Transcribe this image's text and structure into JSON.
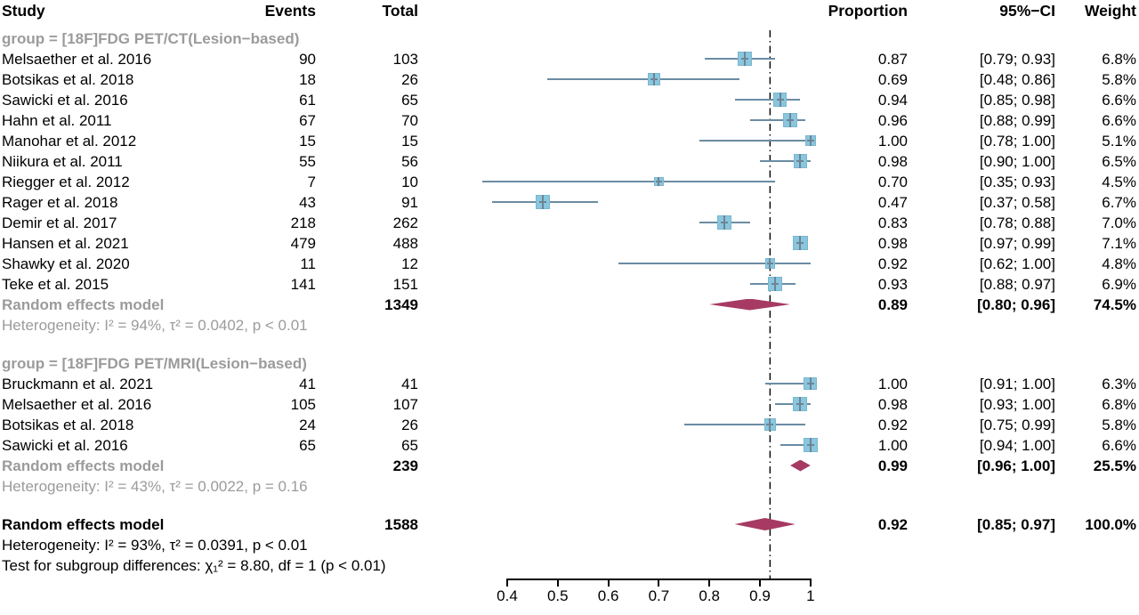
{
  "header": {
    "study": "Study",
    "events": "Events",
    "total": "Total",
    "proportion": "Proportion",
    "ci": "95%−CI",
    "weight": "Weight"
  },
  "colors": {
    "square": "#8AC6DE",
    "square_border": "#79B7D0",
    "ci_line": "#6B8CA3",
    "diamond": "#A63A63",
    "group_text": "#9B9B9B",
    "reference_line": "#000000"
  },
  "chart_data": {
    "type": "forest",
    "xlim": [
      0.4,
      1.0
    ],
    "x_ticks": [
      0.4,
      0.5,
      0.6,
      0.7,
      0.8,
      0.9,
      1.0
    ],
    "x_tick_labels": [
      "0.4",
      "0.5",
      "0.6",
      "0.7",
      "0.8",
      "0.9",
      "1"
    ],
    "reference_line": 0.92,
    "groups": [
      {
        "label": "group = [18F]FDG PET/CT(Lesion−based)",
        "studies": [
          {
            "study": "Melsaether et al. 2016",
            "events": "90",
            "total": "103",
            "proportion": "0.87",
            "prop": 0.87,
            "ci": "[0.79; 0.93]",
            "ci_low": 0.79,
            "ci_high": 0.93,
            "weight": "6.8%",
            "weight_pct": 6.8
          },
          {
            "study": "Botsikas et al. 2018",
            "events": "18",
            "total": "26",
            "proportion": "0.69",
            "prop": 0.69,
            "ci": "[0.48; 0.86]",
            "ci_low": 0.48,
            "ci_high": 0.86,
            "weight": "5.8%",
            "weight_pct": 5.8
          },
          {
            "study": "Sawicki et al. 2016",
            "events": "61",
            "total": "65",
            "proportion": "0.94",
            "prop": 0.94,
            "ci": "[0.85; 0.98]",
            "ci_low": 0.85,
            "ci_high": 0.98,
            "weight": "6.6%",
            "weight_pct": 6.6
          },
          {
            "study": "Hahn et al. 2011",
            "events": "67",
            "total": "70",
            "proportion": "0.96",
            "prop": 0.96,
            "ci": "[0.88; 0.99]",
            "ci_low": 0.88,
            "ci_high": 0.99,
            "weight": "6.6%",
            "weight_pct": 6.6
          },
          {
            "study": "Manohar et al. 2012",
            "events": "15",
            "total": "15",
            "proportion": "1.00",
            "prop": 1.0,
            "ci": "[0.78; 1.00]",
            "ci_low": 0.78,
            "ci_high": 1.0,
            "weight": "5.1%",
            "weight_pct": 5.1
          },
          {
            "study": "Niikura et al. 2011",
            "events": "55",
            "total": "56",
            "proportion": "0.98",
            "prop": 0.98,
            "ci": "[0.90; 1.00]",
            "ci_low": 0.9,
            "ci_high": 1.0,
            "weight": "6.5%",
            "weight_pct": 6.5
          },
          {
            "study": "Riegger et al. 2012",
            "events": "7",
            "total": "10",
            "proportion": "0.70",
            "prop": 0.7,
            "ci": "[0.35; 0.93]",
            "ci_low": 0.35,
            "ci_high": 0.93,
            "weight": "4.5%",
            "weight_pct": 4.5
          },
          {
            "study": "Rager et al. 2018",
            "events": "43",
            "total": "91",
            "proportion": "0.47",
            "prop": 0.47,
            "ci": "[0.37; 0.58]",
            "ci_low": 0.37,
            "ci_high": 0.58,
            "weight": "6.7%",
            "weight_pct": 6.7
          },
          {
            "study": "Demir et al. 2017",
            "events": "218",
            "total": "262",
            "proportion": "0.83",
            "prop": 0.83,
            "ci": "[0.78; 0.88]",
            "ci_low": 0.78,
            "ci_high": 0.88,
            "weight": "7.0%",
            "weight_pct": 7.0
          },
          {
            "study": "Hansen et al. 2021",
            "events": "479",
            "total": "488",
            "proportion": "0.98",
            "prop": 0.98,
            "ci": "[0.97; 0.99]",
            "ci_low": 0.97,
            "ci_high": 0.99,
            "weight": "7.1%",
            "weight_pct": 7.1
          },
          {
            "study": "Shawky et al. 2020",
            "events": "11",
            "total": "12",
            "proportion": "0.92",
            "prop": 0.92,
            "ci": "[0.62; 1.00]",
            "ci_low": 0.62,
            "ci_high": 1.0,
            "weight": "4.8%",
            "weight_pct": 4.8
          },
          {
            "study": "Teke et al. 2015",
            "events": "141",
            "total": "151",
            "proportion": "0.93",
            "prop": 0.93,
            "ci": "[0.88; 0.97]",
            "ci_low": 0.88,
            "ci_high": 0.97,
            "weight": "6.9%",
            "weight_pct": 6.9
          }
        ],
        "summary": {
          "label": "Random effects model",
          "total": "1349",
          "proportion": "0.89",
          "prop": 0.89,
          "ci": "[0.80; 0.96]",
          "ci_low": 0.8,
          "ci_high": 0.96,
          "weight": "74.5%"
        },
        "heterogeneity": "Heterogeneity: I² = 94%, τ² = 0.0402, p < 0.01"
      },
      {
        "label": "group = [18F]FDG PET/MRI(Lesion−based)",
        "studies": [
          {
            "study": "Bruckmann et al. 2021",
            "events": "41",
            "total": "41",
            "proportion": "1.00",
            "prop": 1.0,
            "ci": "[0.91; 1.00]",
            "ci_low": 0.91,
            "ci_high": 1.0,
            "weight": "6.3%",
            "weight_pct": 6.3
          },
          {
            "study": "Melsaether et al. 2016",
            "events": "105",
            "total": "107",
            "proportion": "0.98",
            "prop": 0.98,
            "ci": "[0.93; 1.00]",
            "ci_low": 0.93,
            "ci_high": 1.0,
            "weight": "6.8%",
            "weight_pct": 6.8
          },
          {
            "study": "Botsikas et al. 2018",
            "events": "24",
            "total": "26",
            "proportion": "0.92",
            "prop": 0.92,
            "ci": "[0.75; 0.99]",
            "ci_low": 0.75,
            "ci_high": 0.99,
            "weight": "5.8%",
            "weight_pct": 5.8
          },
          {
            "study": "Sawicki et al. 2016",
            "events": "65",
            "total": "65",
            "proportion": "1.00",
            "prop": 1.0,
            "ci": "[0.94; 1.00]",
            "ci_low": 0.94,
            "ci_high": 1.0,
            "weight": "6.6%",
            "weight_pct": 6.6
          }
        ],
        "summary": {
          "label": "Random effects model",
          "total": "239",
          "proportion": "0.99",
          "prop": 0.99,
          "ci": "[0.96; 1.00]",
          "ci_low": 0.96,
          "ci_high": 1.0,
          "weight": "25.5%"
        },
        "heterogeneity": "Heterogeneity: I² = 43%, τ² = 0.0022, p = 0.16"
      }
    ],
    "overall": {
      "label": "Random effects model",
      "total": "1588",
      "proportion": "0.92",
      "prop": 0.92,
      "ci": "[0.85; 0.97]",
      "ci_low": 0.85,
      "ci_high": 0.97,
      "weight": "100.0%"
    },
    "overall_heterogeneity": "Heterogeneity: I² = 93%, τ² = 0.0391, p < 0.01",
    "subgroup_test": "Test for subgroup differences: χ₁² = 8.80, df = 1 (p < 0.01)"
  }
}
